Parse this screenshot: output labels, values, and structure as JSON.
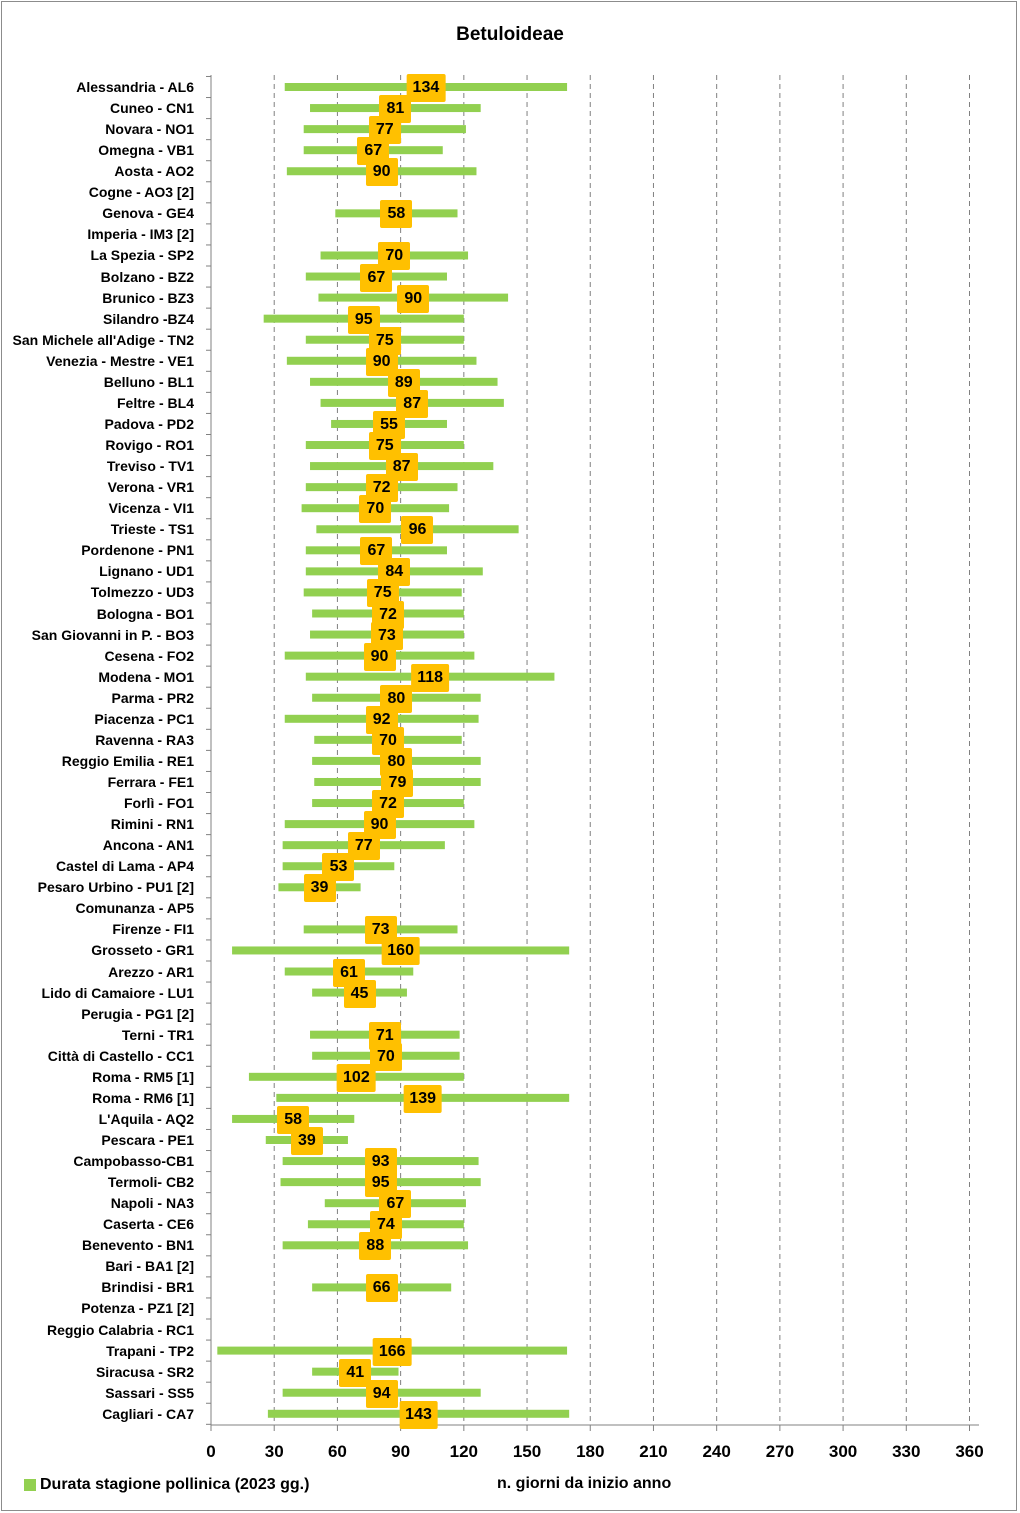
{
  "chart_data": {
    "type": "bar",
    "title": "Betuloideae",
    "xlabel": "n. giorni da inizio anno",
    "legend": "Durata stagione pollinica (2023 gg.)",
    "legend_position": "bottom-left",
    "bar_color": "#92d050",
    "label_color": "#ffc000",
    "xlim": [
      0,
      365
    ],
    "xticks": [
      "0",
      "30",
      "60",
      "90",
      "120",
      "150",
      "180",
      "210",
      "240",
      "270",
      "300",
      "330",
      "360"
    ],
    "grid": "vertical dashed",
    "stations": [
      {
        "name": "Alessandria - AL6",
        "start": 35,
        "end": 169,
        "days": "134"
      },
      {
        "name": "Cuneo - CN1",
        "start": 47,
        "end": 128,
        "days": "81"
      },
      {
        "name": "Novara - NO1",
        "start": 44,
        "end": 121,
        "days": "77"
      },
      {
        "name": "Omegna - VB1",
        "start": 44,
        "end": 110,
        "days": "67"
      },
      {
        "name": "Aosta - AO2",
        "start": 36,
        "end": 126,
        "days": "90"
      },
      {
        "name": "Cogne - AO3 [2]",
        "start": null,
        "end": null,
        "days": ""
      },
      {
        "name": "Genova - GE4",
        "start": 59,
        "end": 117,
        "days": "58"
      },
      {
        "name": "Imperia - IM3 [2]",
        "start": null,
        "end": null,
        "days": ""
      },
      {
        "name": "La Spezia - SP2",
        "start": 52,
        "end": 122,
        "days": "70"
      },
      {
        "name": "Bolzano - BZ2",
        "start": 45,
        "end": 112,
        "days": "67"
      },
      {
        "name": "Brunico - BZ3",
        "start": 51,
        "end": 141,
        "days": "90"
      },
      {
        "name": "Silandro -BZ4",
        "start": 25,
        "end": 120,
        "days": "95"
      },
      {
        "name": "San Michele all'Adige - TN2",
        "start": 45,
        "end": 120,
        "days": "75"
      },
      {
        "name": "Venezia - Mestre - VE1",
        "start": 36,
        "end": 126,
        "days": "90"
      },
      {
        "name": "Belluno - BL1",
        "start": 47,
        "end": 136,
        "days": "89"
      },
      {
        "name": "Feltre - BL4",
        "start": 52,
        "end": 139,
        "days": "87"
      },
      {
        "name": "Padova - PD2",
        "start": 57,
        "end": 112,
        "days": "55"
      },
      {
        "name": "Rovigo - RO1",
        "start": 45,
        "end": 120,
        "days": "75"
      },
      {
        "name": "Treviso - TV1",
        "start": 47,
        "end": 134,
        "days": "87"
      },
      {
        "name": "Verona - VR1",
        "start": 45,
        "end": 117,
        "days": "72"
      },
      {
        "name": "Vicenza - VI1",
        "start": 43,
        "end": 113,
        "days": "70"
      },
      {
        "name": "Trieste - TS1",
        "start": 50,
        "end": 146,
        "days": "96"
      },
      {
        "name": "Pordenone - PN1",
        "start": 45,
        "end": 112,
        "days": "67"
      },
      {
        "name": "Lignano - UD1",
        "start": 45,
        "end": 129,
        "days": "84"
      },
      {
        "name": "Tolmezzo - UD3",
        "start": 44,
        "end": 119,
        "days": "75"
      },
      {
        "name": "Bologna - BO1",
        "start": 48,
        "end": 120,
        "days": "72"
      },
      {
        "name": "San Giovanni in P. - BO3",
        "start": 47,
        "end": 120,
        "days": "73"
      },
      {
        "name": "Cesena - FO2",
        "start": 35,
        "end": 125,
        "days": "90"
      },
      {
        "name": "Modena - MO1",
        "start": 45,
        "end": 163,
        "days": "118"
      },
      {
        "name": "Parma - PR2",
        "start": 48,
        "end": 128,
        "days": "80"
      },
      {
        "name": "Piacenza - PC1",
        "start": 35,
        "end": 127,
        "days": "92"
      },
      {
        "name": "Ravenna - RA3",
        "start": 49,
        "end": 119,
        "days": "70"
      },
      {
        "name": "Reggio Emilia - RE1",
        "start": 48,
        "end": 128,
        "days": "80"
      },
      {
        "name": "Ferrara - FE1",
        "start": 49,
        "end": 128,
        "days": "79"
      },
      {
        "name": "Forlì - FO1",
        "start": 48,
        "end": 120,
        "days": "72"
      },
      {
        "name": "Rimini - RN1",
        "start": 35,
        "end": 125,
        "days": "90"
      },
      {
        "name": "Ancona - AN1",
        "start": 34,
        "end": 111,
        "days": "77"
      },
      {
        "name": "Castel di Lama - AP4",
        "start": 34,
        "end": 87,
        "days": "53"
      },
      {
        "name": "Pesaro Urbino - PU1 [2]",
        "start": 32,
        "end": 71,
        "days": "39"
      },
      {
        "name": "Comunanza - AP5",
        "start": null,
        "end": null,
        "days": ""
      },
      {
        "name": "Firenze - FI1",
        "start": 44,
        "end": 117,
        "days": "73"
      },
      {
        "name": "Grosseto - GR1",
        "start": 10,
        "end": 170,
        "days": "160"
      },
      {
        "name": "Arezzo - AR1",
        "start": 35,
        "end": 96,
        "days": "61"
      },
      {
        "name": "Lido di Camaiore - LU1",
        "start": 48,
        "end": 93,
        "days": "45"
      },
      {
        "name": "Perugia - PG1 [2]",
        "start": null,
        "end": null,
        "days": ""
      },
      {
        "name": "Terni - TR1",
        "start": 47,
        "end": 118,
        "days": "71"
      },
      {
        "name": "Città di Castello - CC1",
        "start": 48,
        "end": 118,
        "days": "70"
      },
      {
        "name": "Roma - RM5 [1]",
        "start": 18,
        "end": 120,
        "days": "102"
      },
      {
        "name": "Roma - RM6 [1]",
        "start": 31,
        "end": 170,
        "days": "139"
      },
      {
        "name": "L'Aquila - AQ2",
        "start": 10,
        "end": 68,
        "days": "58"
      },
      {
        "name": "Pescara - PE1",
        "start": 26,
        "end": 65,
        "days": "39"
      },
      {
        "name": "Campobasso-CB1",
        "start": 34,
        "end": 127,
        "days": "93"
      },
      {
        "name": "Termoli- CB2",
        "start": 33,
        "end": 128,
        "days": "95"
      },
      {
        "name": "Napoli - NA3",
        "start": 54,
        "end": 121,
        "days": "67"
      },
      {
        "name": "Caserta - CE6",
        "start": 46,
        "end": 120,
        "days": "74"
      },
      {
        "name": "Benevento  - BN1",
        "start": 34,
        "end": 122,
        "days": "88"
      },
      {
        "name": "Bari - BA1 [2]",
        "start": null,
        "end": null,
        "days": ""
      },
      {
        "name": "Brindisi - BR1",
        "start": 48,
        "end": 114,
        "days": "66"
      },
      {
        "name": "Potenza - PZ1 [2]",
        "start": null,
        "end": null,
        "days": ""
      },
      {
        "name": "Reggio Calabria - RC1",
        "start": null,
        "end": null,
        "days": ""
      },
      {
        "name": "Trapani - TP2",
        "start": 3,
        "end": 169,
        "days": "166"
      },
      {
        "name": "Siracusa - SR2",
        "start": 48,
        "end": 89,
        "days": "41"
      },
      {
        "name": "Sassari - SS5",
        "start": 34,
        "end": 128,
        "days": "94"
      },
      {
        "name": "Cagliari - CA7",
        "start": 27,
        "end": 170,
        "days": "143"
      }
    ]
  }
}
